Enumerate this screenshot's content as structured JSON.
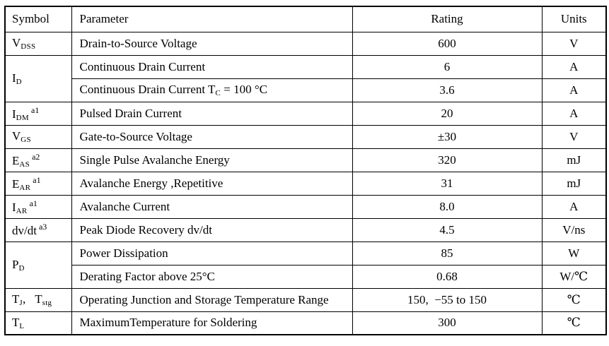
{
  "table": {
    "header": {
      "symbol": "Symbol",
      "parameter": "Parameter",
      "rating": "Rating",
      "units": "Units"
    },
    "rows": [
      {
        "sym_base": "V",
        "sym_sub": "DSS",
        "parameter": "Drain-to-Source Voltage",
        "rating": "600",
        "units": "V"
      },
      {
        "sym_base": "I",
        "sym_sub": "D",
        "parameter": "Continuous Drain Current",
        "rating": "6",
        "units": "A"
      },
      {
        "parameter_pre": "Continuous Drain Current T",
        "parameter_sub": "C",
        "parameter_post": " = 100 °C",
        "rating": "3.6",
        "units": "A"
      },
      {
        "sym_base": "I",
        "sym_sub": "DM",
        "sym_sup": "a1",
        "parameter": "Pulsed Drain Current",
        "rating": "20",
        "units": "A"
      },
      {
        "sym_base": "V",
        "sym_sub": "GS",
        "parameter": "Gate-to-Source Voltage",
        "rating": "±30",
        "units": "V"
      },
      {
        "sym_base": "E",
        "sym_sub": "AS",
        "sym_sup": "a2",
        "parameter": "Single Pulse Avalanche Energy",
        "rating": "320",
        "units": "mJ"
      },
      {
        "sym_base": "E",
        "sym_sub": "AR",
        "sym_sup": "a1",
        "parameter": "Avalanche Energy ,Repetitive",
        "rating": "31",
        "units": "mJ"
      },
      {
        "sym_base": "I",
        "sym_sub": "AR",
        "sym_sup": "a1",
        "parameter": "Avalanche Current",
        "rating": "8.0",
        "units": "A"
      },
      {
        "sym_base": "dv/dt",
        "sym_sup": "a3",
        "parameter": "Peak Diode Recovery dv/dt",
        "rating": "4.5",
        "units": "V/ns"
      },
      {
        "sym_base": "P",
        "sym_sub": "D",
        "parameter": "Power Dissipation",
        "rating": "85",
        "units": "W"
      },
      {
        "parameter": "Derating Factor above 25°C",
        "rating": "0.68",
        "units": "W/℃"
      },
      {
        "sym_base": "T",
        "sym_sub": "J",
        "sym_mid": ",",
        "sym_base2": "T",
        "sym_sub2": "stg",
        "parameter": "Operating Junction and Storage Temperature Range",
        "rating": "150,  −55 to 150",
        "units": "℃"
      },
      {
        "sym_base": "T",
        "sym_sub": "L",
        "parameter": "MaximumTemperature for Soldering",
        "rating": "300",
        "units": "℃"
      }
    ]
  }
}
